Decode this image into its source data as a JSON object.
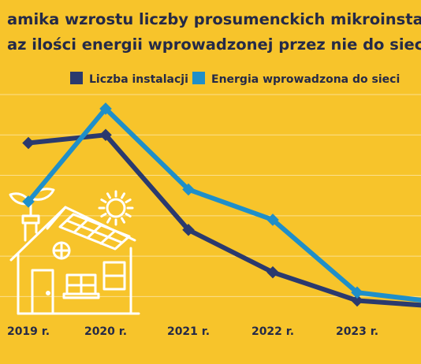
{
  "chart_data": {
    "type": "line",
    "title": [
      "amika wzrostu liczby prosumenckich mikroinstalacji",
      "az ilości energii wprowadzonej przez nie do sieci (pro"
    ],
    "categories": [
      "2019 r.",
      "2020 r.",
      "2021 r.",
      "2022 r.",
      "2023 r.",
      ""
    ],
    "series": [
      {
        "name": "Liczba instalacji",
        "color": "#2B3A6E",
        "values": [
          86,
          90,
          43,
          22,
          8,
          5
        ]
      },
      {
        "name": "Energia wprowadzona do sieci",
        "color": "#1F8FC9",
        "values": [
          57,
          103,
          63,
          48,
          12,
          7
        ]
      }
    ],
    "ylim": [
      0,
      110
    ],
    "grid": true,
    "legend": "top"
  },
  "decoration": {
    "house_icon": "house-with-solar-panels-icon",
    "sun_icon": "sun-icon"
  },
  "colors": {
    "background": "#F7C42B",
    "text": "#252A47"
  }
}
